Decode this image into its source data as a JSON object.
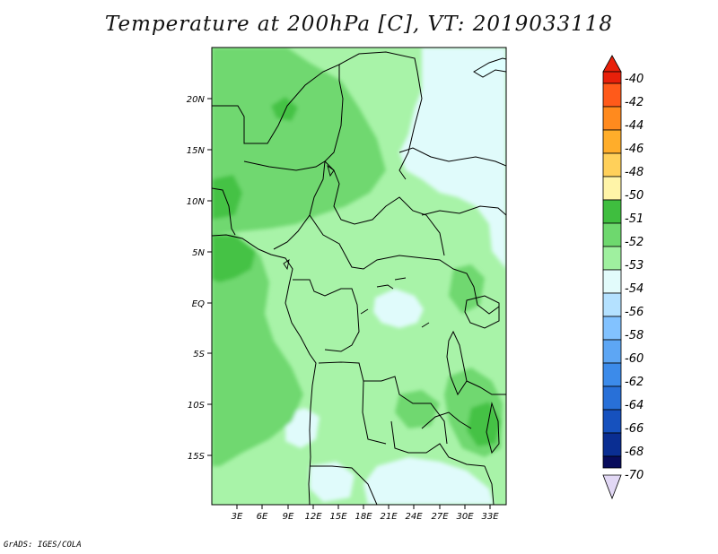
{
  "map": {
    "title": "Temperature at 200hPa [C], VT: 2019033118",
    "lat_labels": [
      "20N",
      "15N",
      "10N",
      "5N",
      "EQ",
      "5S",
      "10S",
      "15S"
    ],
    "lon_labels": [
      "3E",
      "6E",
      "9E",
      "12E",
      "15E",
      "18E",
      "21E",
      "24E",
      "27E",
      "30E",
      "33E"
    ],
    "credit": "GrADS: IGES/COLA"
  },
  "colorbar": {
    "labels": [
      "-40",
      "-42",
      "-44",
      "-46",
      "-48",
      "-50",
      "-51",
      "-52",
      "-53",
      "-54",
      "-56",
      "-58",
      "-60",
      "-62",
      "-64",
      "-66",
      "-68",
      "-70"
    ],
    "colors": [
      "#e8200a",
      "#ff5a1a",
      "#ff8a1e",
      "#ffad2a",
      "#ffd05a",
      "#fff4a8",
      "#3fbe3f",
      "#6ed86e",
      "#9ff09f",
      "#e2fbfb",
      "#b4e1ff",
      "#82c2ff",
      "#5da6f4",
      "#3c8bea",
      "#2870d8",
      "#1651be",
      "#0a2e92",
      "#080c5c"
    ],
    "top_arrow_color": "#e8200a",
    "bottom_arrow_color": "#e2d8f5"
  },
  "colors": {
    "field_dominant": "#a8f3a8",
    "field_warm": "#6fd86f",
    "field_warmest": "#45c245",
    "field_cold": "#e0fbfb",
    "outside_bg": "#ffffff"
  }
}
